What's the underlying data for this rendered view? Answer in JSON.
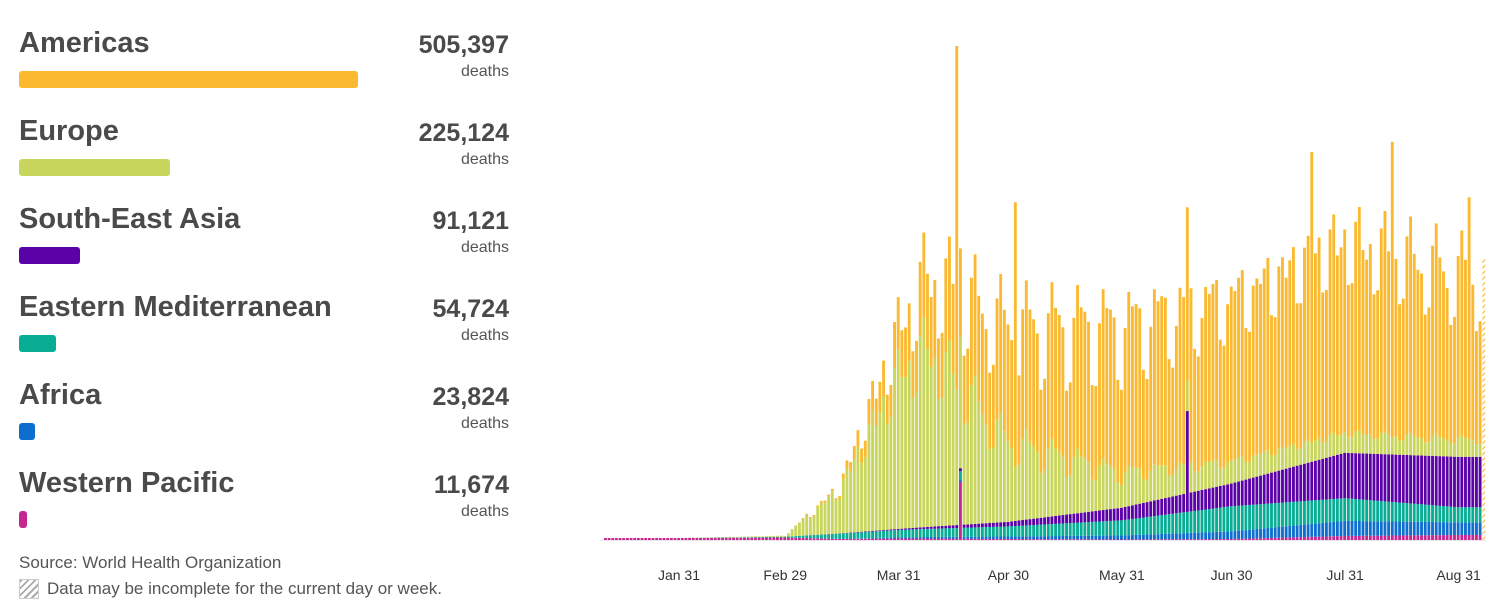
{
  "legend": {
    "regions": [
      {
        "name": "Americas",
        "value": "505,397",
        "unit": "deaths",
        "color": "#fbb930",
        "share": 1.0
      },
      {
        "name": "Europe",
        "value": "225,124",
        "unit": "deaths",
        "color": "#c8d65e",
        "share": 0.445
      },
      {
        "name": "South-East Asia",
        "value": "91,121",
        "unit": "deaths",
        "color": "#5a02a8",
        "share": 0.18
      },
      {
        "name": "Eastern Mediterranean",
        "value": "54,724",
        "unit": "deaths",
        "color": "#08ad93",
        "share": 0.108
      },
      {
        "name": "Africa",
        "value": "23,824",
        "unit": "deaths",
        "color": "#0e6ece",
        "share": 0.047
      },
      {
        "name": "Western Pacific",
        "value": "11,674",
        "unit": "deaths",
        "color": "#c5268f",
        "share": 0.023
      }
    ]
  },
  "footer": {
    "source": "Source: World Health Organization",
    "note": "Data may be incomplete for the current day or week."
  },
  "chart_data": {
    "type": "bar",
    "stacked": true,
    "x_tick_labels": [
      "Jan 31",
      "Feb 29",
      "Mar 31",
      "Apr 30",
      "May 31",
      "Jun 30",
      "Jul 31",
      "Aug 31"
    ],
    "x_range": [
      "2020-01-11",
      "2020-09-07"
    ],
    "y_max": 9800,
    "grid": false,
    "last_bar_incomplete": true,
    "series_order": [
      "Western Pacific",
      "Africa",
      "Eastern Mediterranean",
      "South-East Asia",
      "Europe",
      "Americas"
    ],
    "key_values": [
      {
        "x": "2020-01-31",
        "Western Pacific": 40,
        "Africa": 0,
        "Eastern Mediterranean": 0,
        "South-East Asia": 0,
        "Europe": 0,
        "Americas": 0
      },
      {
        "x": "2020-02-29",
        "Western Pacific": 50,
        "Africa": 0,
        "Eastern Mediterranean": 15,
        "South-East Asia": 0,
        "Europe": 20,
        "Americas": 0
      },
      {
        "x": "2020-03-15",
        "Western Pacific": 20,
        "Africa": 5,
        "Eastern Mediterranean": 100,
        "South-East Asia": 5,
        "Europe": 900,
        "Americas": 50
      },
      {
        "x": "2020-03-31",
        "Western Pacific": 30,
        "Africa": 20,
        "Eastern Mediterranean": 150,
        "South-East Asia": 20,
        "Europe": 3100,
        "Americas": 900
      },
      {
        "x": "2020-04-08",
        "Western Pacific": 30,
        "Africa": 30,
        "Eastern Mediterranean": 160,
        "South-East Asia": 40,
        "Europe": 3600,
        "Americas": 1500
      },
      {
        "x": "2020-04-30",
        "Western Pacific": 20,
        "Africa": 50,
        "Eastern Mediterranean": 200,
        "South-East Asia": 90,
        "Europe": 1600,
        "Americas": 2300
      },
      {
        "x": "2020-05-31",
        "Western Pacific": 10,
        "Africa": 80,
        "Eastern Mediterranean": 300,
        "South-East Asia": 250,
        "Europe": 700,
        "Americas": 2900
      },
      {
        "x": "2020-06-30",
        "Western Pacific": 20,
        "Africa": 150,
        "Eastern Mediterranean": 500,
        "South-East Asia": 450,
        "Europe": 450,
        "Americas": 3300
      },
      {
        "x": "2020-07-31",
        "Western Pacific": 80,
        "Africa": 300,
        "Eastern Mediterranean": 450,
        "South-East Asia": 900,
        "Europe": 400,
        "Americas": 3900
      },
      {
        "x": "2020-08-31",
        "Western Pacific": 100,
        "Africa": 250,
        "Eastern Mediterranean": 300,
        "South-East Asia": 1000,
        "Europe": 350,
        "Americas": 3300
      }
    ],
    "spikes": [
      {
        "x": "2020-04-16",
        "series": "Americas",
        "total": 9800
      },
      {
        "x": "2020-04-17",
        "series": "Western Pacific",
        "value": 1150
      },
      {
        "x": "2020-05-02",
        "series": "Americas",
        "total": 6700
      },
      {
        "x": "2020-06-18",
        "series": "South-East Asia",
        "value": 2000
      },
      {
        "x": "2020-07-22",
        "series": "Americas",
        "total": 7700
      },
      {
        "x": "2020-08-13",
        "series": "Americas",
        "total": 7900
      },
      {
        "x": "2020-09-03",
        "series": "Americas",
        "total": 6800
      }
    ]
  }
}
